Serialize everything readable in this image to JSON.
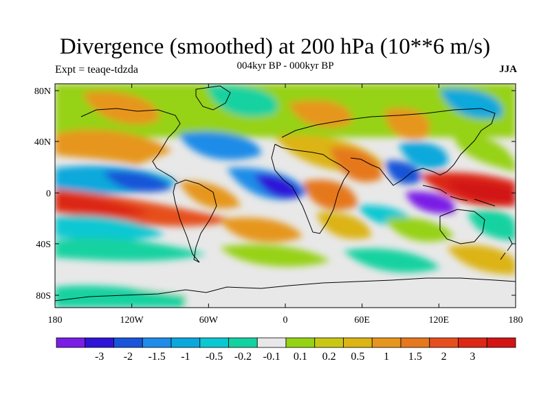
{
  "title": "Divergence (smoothed) at 200 hPa (10**6 m/s)",
  "subtitle": "004kyr BP - 000kyr BP",
  "experiment": "Expt = teaqe-tdzda",
  "season": "JJA",
  "lat_ticks": [
    "80N",
    "40N",
    "0",
    "40S",
    "80S"
  ],
  "lon_ticks": [
    "180",
    "120W",
    "60W",
    "0",
    "60E",
    "120E",
    "180"
  ],
  "colorbar": {
    "colors": [
      "#7a1ee6",
      "#2f14d8",
      "#1955d8",
      "#1e8ce8",
      "#0aa8dc",
      "#0ac8d2",
      "#14d2a0",
      "#e8e8e8",
      "#96d214",
      "#c8c814",
      "#dcb414",
      "#e6961e",
      "#e6781e",
      "#e6501e",
      "#dc2814",
      "#d21414"
    ],
    "labels": [
      "-3",
      "-2",
      "-1.5",
      "-1",
      "-0.5",
      "-0.2",
      "-0.1",
      "0.1",
      "0.2",
      "0.5",
      "1",
      "1.5",
      "2",
      "3"
    ]
  }
}
